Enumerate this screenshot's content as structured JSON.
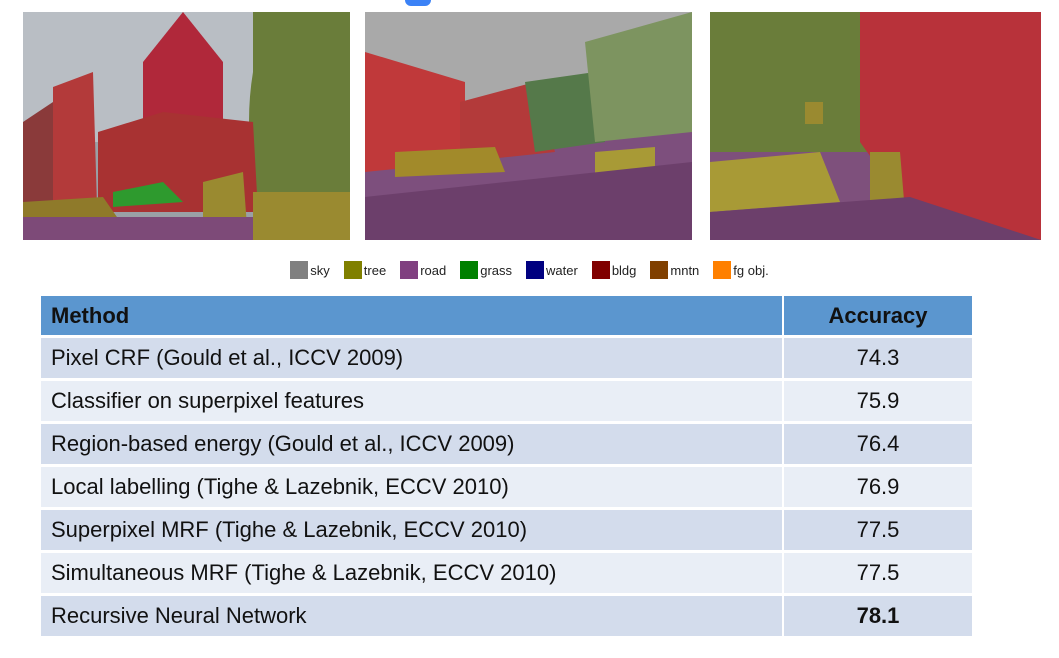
{
  "legend": [
    {
      "label": "sky",
      "color": "#808080"
    },
    {
      "label": "tree",
      "color": "#808000"
    },
    {
      "label": "road",
      "color": "#804080"
    },
    {
      "label": "grass",
      "color": "#008000"
    },
    {
      "label": "water",
      "color": "#000080"
    },
    {
      "label": "bldg",
      "color": "#800000"
    },
    {
      "label": "mntn",
      "color": "#804000"
    },
    {
      "label": "fg obj.",
      "color": "#ff8000"
    }
  ],
  "table": {
    "headers": {
      "method": "Method",
      "accuracy": "Accuracy"
    },
    "rows": [
      {
        "method": "Pixel CRF (Gould et al., ICCV 2009)",
        "accuracy": "74.3"
      },
      {
        "method": "Classifier on superpixel features",
        "accuracy": "75.9"
      },
      {
        "method": "Region-based energy (Gould et al., ICCV 2009)",
        "accuracy": "76.4"
      },
      {
        "method": "Local labelling (Tighe & Lazebnik, ECCV 2010)",
        "accuracy": "76.9"
      },
      {
        "method": "Superpixel MRF (Tighe & Lazebnik, ECCV 2010)",
        "accuracy": "77.5"
      },
      {
        "method": "Simultaneous MRF (Tighe & Lazebnik, ECCV 2010)",
        "accuracy": "77.5"
      },
      {
        "method": "Recursive Neural Network",
        "accuracy": "78.1"
      }
    ]
  }
}
